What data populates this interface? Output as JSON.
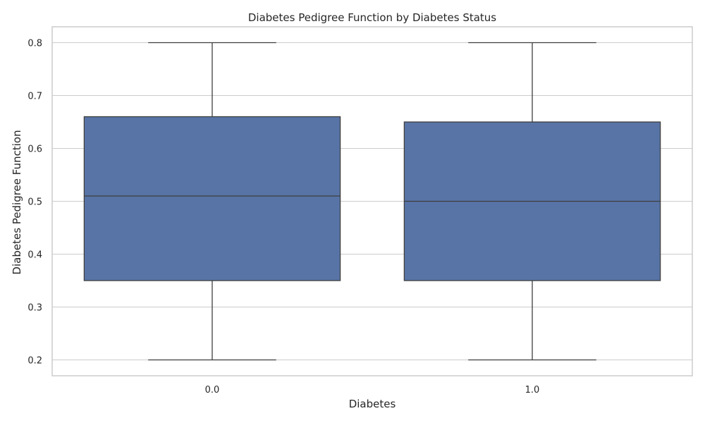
{
  "chart_data": {
    "type": "box",
    "title": "Diabetes Pedigree Function by Diabetes Status",
    "xlabel": "Diabetes",
    "ylabel": "Diabetes Pedigree Function",
    "categories": [
      "0.0",
      "1.0"
    ],
    "ylim": [
      0.17,
      0.83
    ],
    "yticks": [
      "0.2",
      "0.3",
      "0.4",
      "0.5",
      "0.6",
      "0.7",
      "0.8"
    ],
    "grid": true,
    "box_color": "#5874a6",
    "boxes": [
      {
        "category": "0.0",
        "min": 0.2,
        "q1": 0.35,
        "median": 0.51,
        "q3": 0.66,
        "max": 0.8
      },
      {
        "category": "1.0",
        "min": 0.2,
        "q1": 0.35,
        "median": 0.5,
        "q3": 0.65,
        "max": 0.8
      }
    ]
  }
}
